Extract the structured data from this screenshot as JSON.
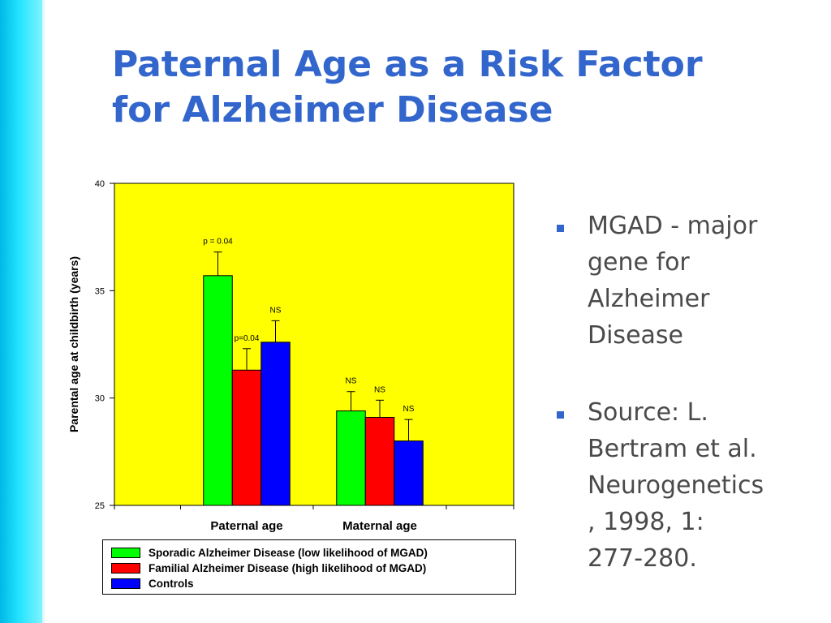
{
  "slide": {
    "title_line1": "Paternal Age as a Risk Factor",
    "title_line2": "for Alzheimer Disease",
    "colors": {
      "title": "#3366cc",
      "accent_bar": "#22e4ff",
      "bullet_marker": "#3366cc",
      "body_text": "#4a4a4a"
    },
    "bullets": [
      {
        "text": "MGAD - major gene for Alzheimer Disease",
        "lines": [
          "MGAD - major",
          "gene for",
          "Alzheimer",
          "Disease"
        ]
      },
      {
        "text": "Source: L. Bertram et al. Neurogenetics, 1998, 1: 277-280.",
        "lines": [
          "Source: L.",
          "Bertram et al.",
          "Neurogenetics",
          ", 1998, 1:",
          "277-280."
        ]
      }
    ]
  },
  "chart_data": {
    "type": "bar",
    "title": "",
    "xlabel": "",
    "ylabel": "Parental age at childbirth (years)",
    "ylim": [
      25,
      40
    ],
    "yticks": [
      25,
      30,
      35,
      40
    ],
    "plot_background": "#ffff00",
    "grid": false,
    "categories": [
      "Paternal age",
      "Maternal age"
    ],
    "series": [
      {
        "name": "Sporadic Alzheimer Disease (low likelihood of MGAD)",
        "color": "#00ff00",
        "values": [
          35.7,
          29.4
        ],
        "error_upper": [
          36.8,
          30.3
        ],
        "annotations": [
          "p = 0.04",
          "NS"
        ]
      },
      {
        "name": "Familial Alzheimer Disease (high likelihood of MGAD)",
        "color": "#ff0000",
        "values": [
          31.3,
          29.1
        ],
        "error_upper": [
          32.3,
          29.9
        ],
        "annotations": [
          "p=0.04",
          "NS"
        ]
      },
      {
        "name": "Controls",
        "color": "#0000ff",
        "values": [
          32.6,
          28.0
        ],
        "error_upper": [
          33.6,
          29.0
        ],
        "annotations": [
          "NS",
          "NS"
        ]
      }
    ],
    "legend_position": "bottom"
  }
}
